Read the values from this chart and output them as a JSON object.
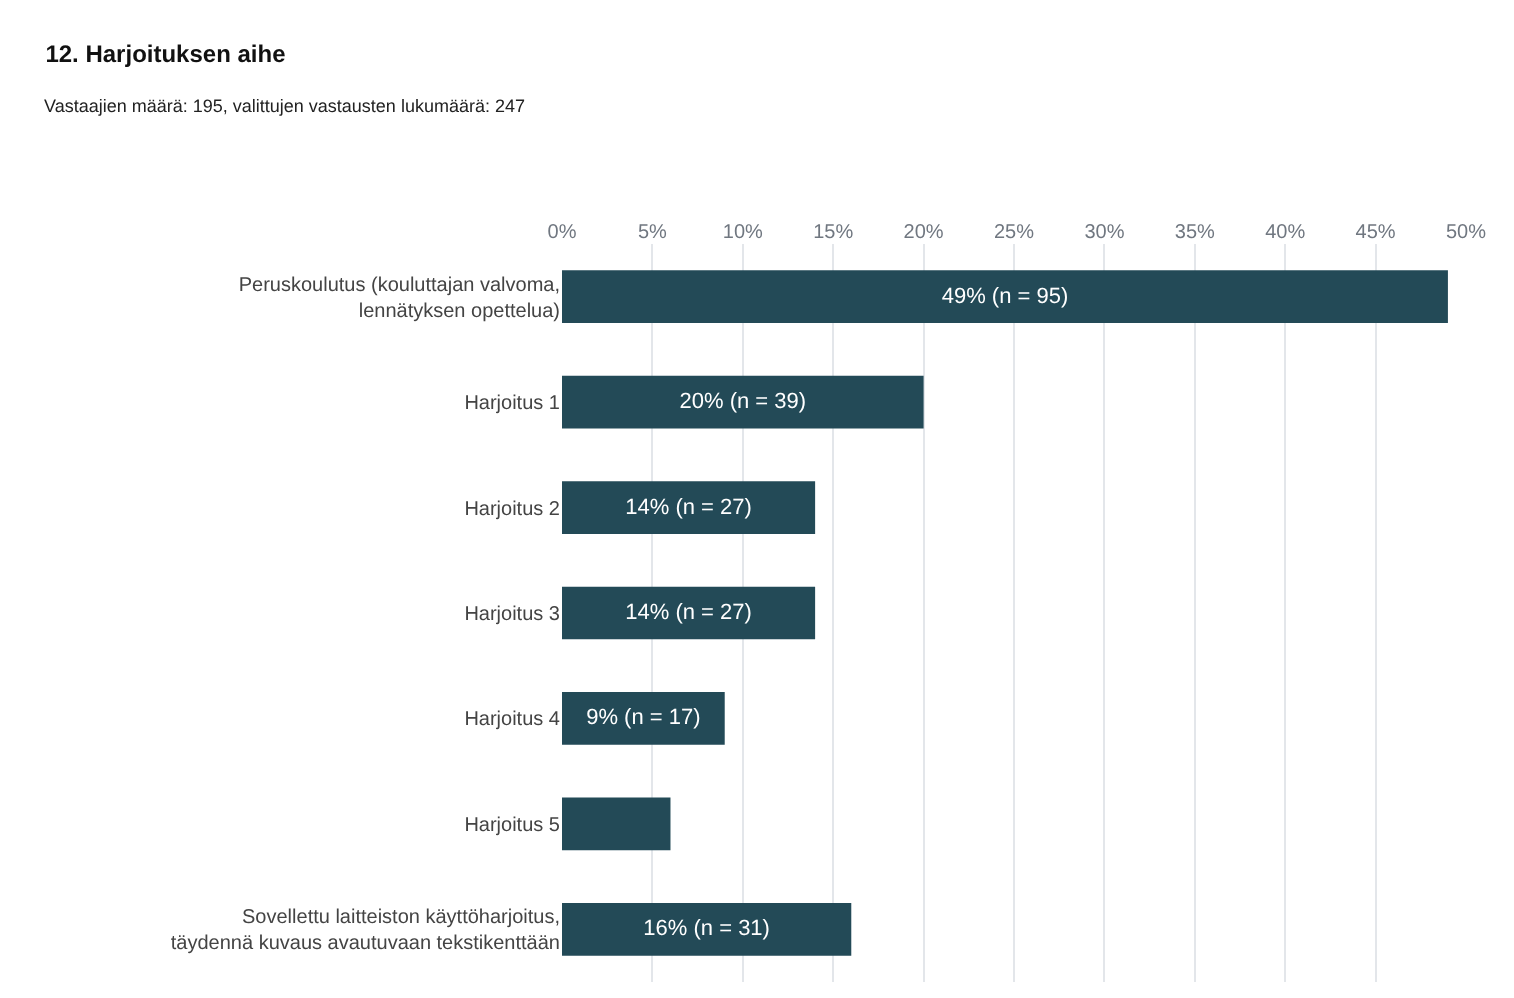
{
  "chart_data": {
    "type": "bar",
    "orientation": "horizontal",
    "title": "12. Harjoituksen aihe",
    "subtitle": "Vastaajien määrä: 195, valittujen vastausten lukumäärä: 247",
    "categories": [
      "Peruskoulutus (kouluttajan valvoma, lennätyksen opettelua)",
      "Harjoitus 1",
      "Harjoitus 2",
      "Harjoitus 3",
      "Harjoitus 4",
      "Harjoitus 5",
      "Sovellettu laitteiston käyttöharjoitus, täydennä kuvaus avautuvaan tekstikenttään"
    ],
    "values": [
      49,
      20,
      14,
      14,
      9,
      6,
      16
    ],
    "value_labels": [
      "49% (n = 95)",
      "20% (n = 39)",
      "14% (n = 27)",
      "14% (n = 27)",
      "9% (n = 17)",
      null,
      "16% (n = 31)"
    ],
    "color": "#234a57",
    "xlim": [
      0,
      50
    ],
    "xticks": [
      {
        "value": 0,
        "label": "0%"
      },
      {
        "value": 5,
        "label": "5%"
      },
      {
        "value": 10,
        "label": "10%"
      },
      {
        "value": 15,
        "label": "15%"
      },
      {
        "value": 20,
        "label": "20%"
      },
      {
        "value": 25,
        "label": "25%"
      },
      {
        "value": 30,
        "label": "30%"
      },
      {
        "value": 35,
        "label": "35%"
      },
      {
        "value": 40,
        "label": "40%"
      },
      {
        "value": 45,
        "label": "45%"
      },
      {
        "value": 50,
        "label": "50%"
      }
    ],
    "grid": "x"
  }
}
